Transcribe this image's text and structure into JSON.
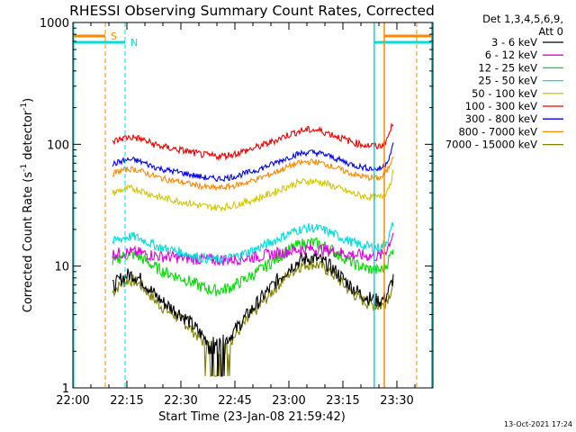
{
  "chart_data": {
    "type": "line",
    "title": "RHESSI Observing Summary Count Rates, Corrected",
    "xlabel": "Start Time (23-Jan-08 21:59:42)",
    "ylabel_main": "Corrected Count Rate (s",
    "ylabel_sup1": "-1",
    "ylabel_mid": " detector",
    "ylabel_sup2": "-1",
    "ylabel_end": ")",
    "footer": "13-Oct-2021 17:24",
    "legend_header": [
      "Det 1,3,4,5,6,9,",
      "Att 0"
    ],
    "yscale": "log",
    "ylim": [
      1,
      1000
    ],
    "xlim_minutes": [
      0,
      100
    ],
    "x_ticks": [
      {
        "m": 0,
        "label": "22:00"
      },
      {
        "m": 15,
        "label": "22:15"
      },
      {
        "m": 30,
        "label": "22:30"
      },
      {
        "m": 45,
        "label": "22:45"
      },
      {
        "m": 60,
        "label": "23:00"
      },
      {
        "m": 75,
        "label": "23:15"
      },
      {
        "m": 90,
        "label": "23:30"
      }
    ],
    "y_ticks": [
      {
        "v": 1,
        "label": "1"
      },
      {
        "v": 10,
        "label": "10"
      },
      {
        "v": 100,
        "label": "100"
      },
      {
        "v": 1000,
        "label": "1000"
      }
    ],
    "flag_labels": {
      "S": "S",
      "N": "N"
    },
    "series": [
      {
        "name": "3 - 6 keV",
        "color": "#000000",
        "base": 5.0,
        "amp": 1.55,
        "noise": 0.06,
        "floor": 1.5
      },
      {
        "name": "6 - 12 keV",
        "color": "#e000e0",
        "base": 12.0,
        "amp": 0.18,
        "noise": 0.05
      },
      {
        "name": "12 - 25 keV",
        "color": "#00dd00",
        "base": 9.0,
        "amp": 0.85,
        "noise": 0.05
      },
      {
        "name": "25 - 50 keV",
        "color": "#00dddd",
        "base": 14.0,
        "amp": 0.55,
        "noise": 0.04
      },
      {
        "name": "50 - 100 keV",
        "color": "#d4c800",
        "base": 36.0,
        "amp": 0.45,
        "noise": 0.03
      },
      {
        "name": "100 - 300 keV",
        "color": "#ee0000",
        "base": 95.0,
        "amp": 0.45,
        "noise": 0.03
      },
      {
        "name": "300 - 800 keV",
        "color": "#0000ee",
        "base": 62.0,
        "amp": 0.45,
        "noise": 0.025
      },
      {
        "name": "800 - 7000 keV",
        "color": "#ff8800",
        "base": 52.0,
        "amp": 0.45,
        "noise": 0.025
      },
      {
        "name": "7000 - 15000 keV",
        "color": "#808000",
        "base": 4.5,
        "amp": 1.55,
        "noise": 0.05,
        "floor": 1.5
      }
    ]
  }
}
